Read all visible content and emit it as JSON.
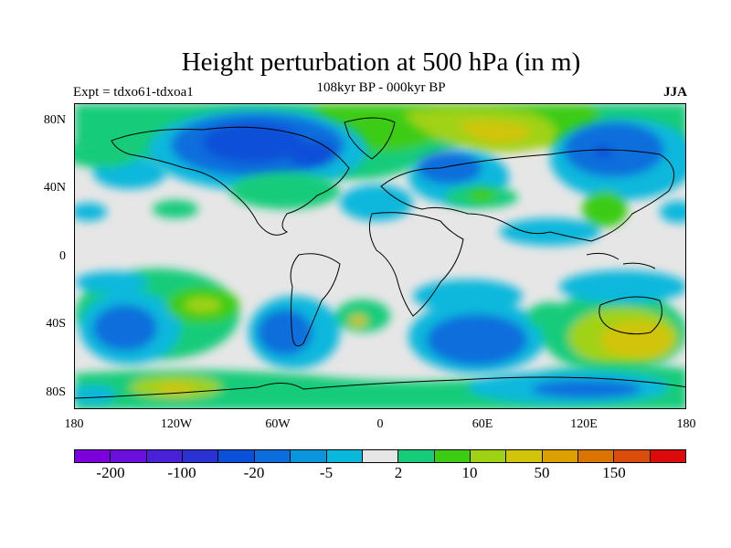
{
  "title": "Height perturbation at 500 hPa (in m)",
  "experiment_label": "Expt = tdxo61-tdxoa1",
  "period_label": "108kyr BP - 000kyr BP",
  "season_label": "JJA",
  "lat_ticks": [
    "80N",
    "40N",
    "0",
    "40S",
    "80S"
  ],
  "lon_ticks": [
    "180",
    "120W",
    "60W",
    "0",
    "60E",
    "120E",
    "180"
  ],
  "colorbar": {
    "colors": [
      "#7b00dc",
      "#6a0fdc",
      "#4a20d8",
      "#2a32d4",
      "#0a50d8",
      "#0c6edc",
      "#0a96dc",
      "#0ab8dc",
      "#e6e6e6",
      "#14cc7a",
      "#3ccc14",
      "#a0d214",
      "#d2c40a",
      "#dca000",
      "#dc7400",
      "#dc4c0a",
      "#dc0a0a"
    ],
    "labels": [
      "-200",
      "-100",
      "-20",
      "-5",
      "2",
      "10",
      "50",
      "150"
    ]
  },
  "map": {
    "colors": {
      "dark_blue": "#0a50d8",
      "blue": "#0c6edc",
      "light_blue": "#0ab8dc",
      "teal": "#14cc7a",
      "green": "#3ccc14",
      "yellow_green": "#a0d214",
      "yellow": "#d2c40a",
      "orange": "#dca000"
    }
  }
}
